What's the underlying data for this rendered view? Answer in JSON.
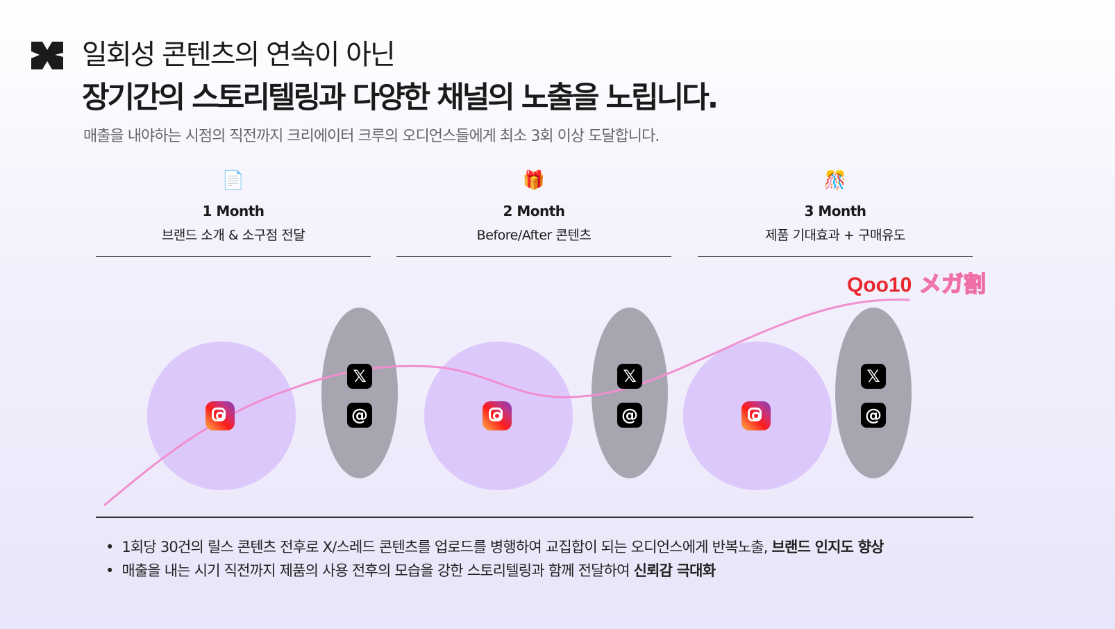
{
  "title": {
    "line1": "일회성 콘텐츠의 연속이 아닌",
    "line2": "장기간의 스토리텔링과 다양한 채널의 노출을 노립니다.",
    "subtitle": "매출을 내야하는 시점의 직전까지 크리에이터 크루의 오디언스들에게 최소 3회 이상 도달합니다."
  },
  "months": [
    {
      "icon": "📄",
      "icon_name": "page-icon",
      "label": "1 Month",
      "desc": "브랜드 소개 & 소구점 전달"
    },
    {
      "icon": "🎁",
      "icon_name": "gift-icon",
      "label": "2 Month",
      "desc": "Before/After 콘텐츠"
    },
    {
      "icon": "🎊",
      "icon_name": "confetti-icon",
      "label": "3 Month",
      "desc": "제품 기대효과 + 구매유도"
    }
  ],
  "channels": {
    "x": "𝕏",
    "threads": "@"
  },
  "promo": {
    "brand": "Qoo10",
    "tag": "メガ割"
  },
  "bullets": [
    {
      "text": "1회당 30건의 릴스 콘텐츠 전후로 X/스레드 콘텐츠를 업로드를 병행하여 교집합이 되는 오디언스에게 반복노출, ",
      "bold": "브랜드 인지도 향상"
    },
    {
      "text": "매출을 내는 시기 직전까지 제품의 사용 전후의 모습을 강한 스토리텔링과 함께 전달하여 ",
      "bold": "신뢰감 극대화"
    }
  ],
  "colors": {
    "circle": "#dcc8fa",
    "ellipse": "#a7a5b0",
    "curve": "#f08fcf",
    "qoo_red": "#e8262e",
    "qoo_blue": "#2549a8",
    "mega": "#f06ea8"
  }
}
